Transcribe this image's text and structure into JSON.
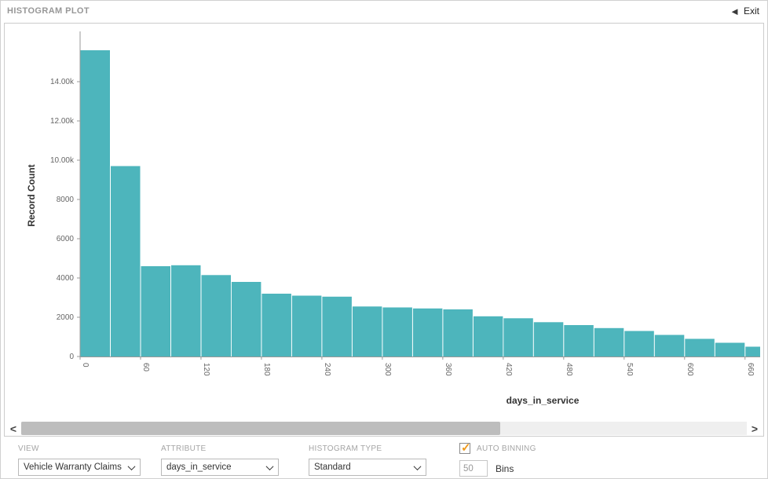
{
  "header": {
    "title": "HISTOGRAM PLOT",
    "exit_label": "Exit",
    "exit_icon": "◄"
  },
  "chart_data": {
    "type": "bar",
    "title": "",
    "xlabel": "days_in_service",
    "ylabel": "Record Count",
    "bar_color": "#4db5bc",
    "bin_width": 30,
    "x_start": 0,
    "values": [
      15600,
      9700,
      4600,
      4650,
      4150,
      3800,
      3200,
      3100,
      3050,
      2550,
      2500,
      2450,
      2400,
      2050,
      1950,
      1750,
      1600,
      1450,
      1300,
      1100,
      900,
      700,
      500
    ],
    "x_ticks": [
      "0",
      "60",
      "120",
      "180",
      "240",
      "300",
      "360",
      "420",
      "480",
      "540",
      "600",
      "660"
    ],
    "y_ticks": [
      {
        "v": 0,
        "label": "0"
      },
      {
        "v": 2000,
        "label": "2000"
      },
      {
        "v": 4000,
        "label": "4000"
      },
      {
        "v": 6000,
        "label": "6000"
      },
      {
        "v": 8000,
        "label": "8000"
      },
      {
        "v": 10000,
        "label": "10.00k"
      },
      {
        "v": 12000,
        "label": "12.00k"
      },
      {
        "v": 14000,
        "label": "14.00k"
      }
    ],
    "ylim": [
      0,
      16400
    ],
    "grid": false,
    "legend": "none"
  },
  "scrollbar": {
    "left_icon": "<",
    "right_icon": ">"
  },
  "controls": {
    "view": {
      "label": "VIEW",
      "value": "Vehicle Warranty Claims"
    },
    "attribute": {
      "label": "ATTRIBUTE",
      "value": "days_in_service"
    },
    "histogram_type": {
      "label": "HISTOGRAM TYPE",
      "value": "Standard"
    },
    "auto_binning": {
      "label": "AUTO BINNING",
      "checked": true,
      "bins_value": "50",
      "bins_label": "Bins"
    }
  }
}
